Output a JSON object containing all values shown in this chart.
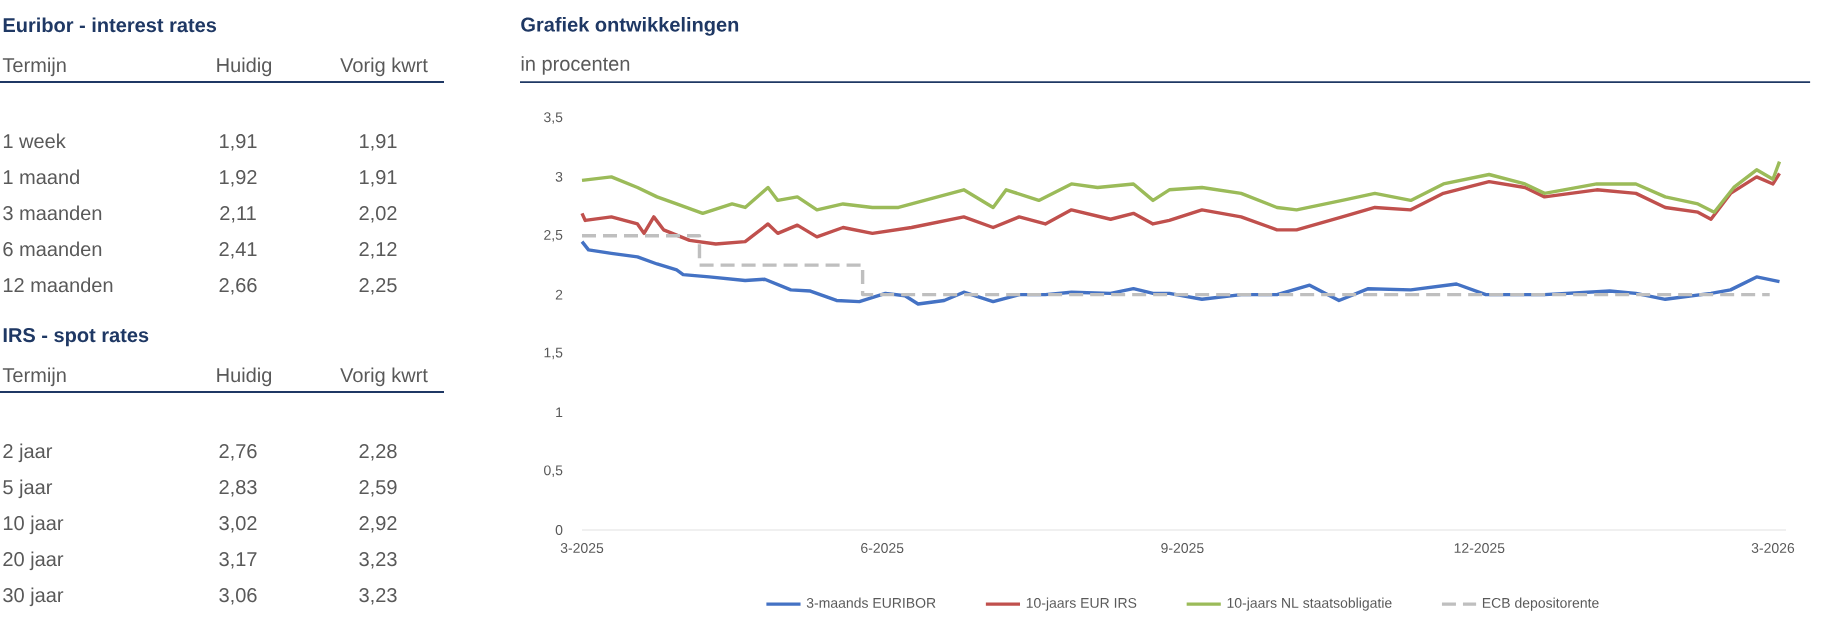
{
  "chart_data": [
    {
      "type": "other",
      "title": "Euribor - interest rates",
      "ylabel": "Termijn",
      "categories": [
        "Huidig",
        "Vorig kwrt"
      ],
      "y_categories": [
        "1 week",
        "1 maand",
        "3 maanden",
        "6 maanden",
        "12 maanden"
      ],
      "cell_labels": [
        [
          "1,91",
          "1,91"
        ],
        [
          "1,92",
          "1,91"
        ],
        [
          "2,11",
          "2,02"
        ],
        [
          "2,41",
          "2,12"
        ],
        [
          "2,66",
          "2,25"
        ]
      ]
    },
    {
      "type": "other",
      "title": "IRS - spot rates",
      "ylabel": "Termijn",
      "categories": [
        "Huidig",
        "Vorig kwrt"
      ],
      "y_categories": [
        "2 jaar",
        "5 jaar",
        "10 jaar",
        "20 jaar",
        "30 jaar"
      ],
      "cell_labels": [
        [
          "2,76",
          "2,28"
        ],
        [
          "2,83",
          "2,59"
        ],
        [
          "3,02",
          "2,92"
        ],
        [
          "3,17",
          "3,23"
        ],
        [
          "3,06",
          "3,23"
        ]
      ]
    },
    {
      "type": "line",
      "title": "Grafiek ontwikkelingen",
      "subtitle": "in procenten",
      "legend": "bottom",
      "xlim": [
        "2025-03-01",
        "2026-03-05"
      ],
      "xticks": [
        {
          "value": "2025-03-01",
          "label": "3-2025"
        },
        {
          "value": "2025-06-01",
          "label": "6-2025"
        },
        {
          "value": "2025-09-01",
          "label": "9-2025"
        },
        {
          "value": "2025-12-01",
          "label": "12-2025"
        },
        {
          "value": "2026-03-01",
          "label": "3-2026"
        }
      ],
      "ylim": [
        0,
        3.5
      ],
      "yticks": [
        0,
        {
          "value": 0.5,
          "label": "0,5"
        },
        1,
        {
          "value": 1.5,
          "label": "1,5"
        },
        2,
        {
          "value": 2.5,
          "label": "2,5"
        },
        3,
        {
          "value": 3.5,
          "label": "3,5"
        }
      ],
      "series": [
        {
          "name": "3-maands EURIBOR",
          "color": "#4472c4",
          "line_style": "solid",
          "x": [
            "2025-03-01",
            "2025-03-03",
            "2025-03-10",
            "2025-03-18",
            "2025-03-24",
            "2025-03-30",
            "2025-04-01",
            "2025-04-09",
            "2025-04-20",
            "2025-04-26",
            "2025-05-04",
            "2025-05-10",
            "2025-05-18",
            "2025-05-25",
            "2025-06-02",
            "2025-06-08",
            "2025-06-12",
            "2025-06-20",
            "2025-06-26",
            "2025-07-05",
            "2025-07-13",
            "2025-07-21",
            "2025-07-29",
            "2025-08-10",
            "2025-08-17",
            "2025-08-23",
            "2025-08-28",
            "2025-09-07",
            "2025-09-19",
            "2025-09-30",
            "2025-10-10",
            "2025-10-19",
            "2025-10-28",
            "2025-11-10",
            "2025-11-24",
            "2025-12-03",
            "2025-12-21",
            "2026-01-10",
            "2026-01-18",
            "2026-01-27",
            "2026-02-10",
            "2026-02-16",
            "2026-02-24",
            "2026-03-03"
          ],
          "values": [
            2.45,
            2.38,
            2.35,
            2.32,
            2.26,
            2.21,
            2.17,
            2.15,
            2.12,
            2.13,
            2.04,
            2.03,
            1.95,
            1.94,
            2.01,
            1.99,
            1.92,
            1.95,
            2.02,
            1.94,
            2.0,
            2.0,
            2.02,
            2.01,
            2.05,
            2.01,
            2.01,
            1.96,
            2.0,
            2.0,
            2.08,
            1.95,
            2.05,
            2.04,
            2.09,
            2.0,
            2.0,
            2.03,
            2.01,
            1.96,
            2.01,
            2.04,
            2.15,
            2.11
          ]
        },
        {
          "name": "10-jaars EUR IRS",
          "color": "#c0504d",
          "line_style": "solid",
          "x": [
            "2025-03-01",
            "2025-03-02",
            "2025-03-10",
            "2025-03-18",
            "2025-03-20",
            "2025-03-23",
            "2025-03-26",
            "2025-04-03",
            "2025-04-11",
            "2025-04-20",
            "2025-04-27",
            "2025-04-30",
            "2025-05-06",
            "2025-05-12",
            "2025-05-20",
            "2025-05-29",
            "2025-06-10",
            "2025-06-26",
            "2025-07-05",
            "2025-07-13",
            "2025-07-21",
            "2025-07-29",
            "2025-08-10",
            "2025-08-17",
            "2025-08-23",
            "2025-08-28",
            "2025-09-07",
            "2025-09-19",
            "2025-09-30",
            "2025-10-06",
            "2025-10-20",
            "2025-10-30",
            "2025-11-10",
            "2025-11-20",
            "2025-12-04",
            "2025-12-15",
            "2025-12-21",
            "2026-01-06",
            "2026-01-18",
            "2026-01-27",
            "2026-02-06",
            "2026-02-10",
            "2026-02-16",
            "2026-02-24",
            "2026-03-01",
            "2026-03-03"
          ],
          "values": [
            2.69,
            2.63,
            2.66,
            2.6,
            2.52,
            2.66,
            2.55,
            2.46,
            2.43,
            2.45,
            2.6,
            2.52,
            2.59,
            2.49,
            2.57,
            2.52,
            2.57,
            2.66,
            2.57,
            2.66,
            2.6,
            2.72,
            2.64,
            2.69,
            2.6,
            2.63,
            2.72,
            2.66,
            2.55,
            2.55,
            2.66,
            2.74,
            2.72,
            2.86,
            2.96,
            2.91,
            2.83,
            2.89,
            2.86,
            2.74,
            2.7,
            2.64,
            2.86,
            3.0,
            2.94,
            3.03
          ]
        },
        {
          "name": "10-jaars NL staatsobligatie",
          "color": "#9bbb59",
          "line_style": "solid",
          "x": [
            "2025-03-01",
            "2025-03-10",
            "2025-03-18",
            "2025-03-24",
            "2025-03-30",
            "2025-04-07",
            "2025-04-16",
            "2025-04-20",
            "2025-04-27",
            "2025-04-30",
            "2025-05-06",
            "2025-05-12",
            "2025-05-20",
            "2025-05-29",
            "2025-06-06",
            "2025-06-14",
            "2025-06-26",
            "2025-07-05",
            "2025-07-09",
            "2025-07-19",
            "2025-07-29",
            "2025-08-06",
            "2025-08-17",
            "2025-08-23",
            "2025-08-28",
            "2025-09-07",
            "2025-09-19",
            "2025-09-30",
            "2025-10-06",
            "2025-10-20",
            "2025-10-30",
            "2025-11-10",
            "2025-11-20",
            "2025-12-04",
            "2025-12-15",
            "2025-12-21",
            "2026-01-06",
            "2026-01-18",
            "2026-01-27",
            "2026-02-06",
            "2026-02-11",
            "2026-02-17",
            "2026-02-24",
            "2026-03-01",
            "2026-03-03"
          ],
          "values": [
            2.97,
            3.0,
            2.91,
            2.83,
            2.77,
            2.69,
            2.77,
            2.74,
            2.91,
            2.8,
            2.83,
            2.72,
            2.77,
            2.74,
            2.74,
            2.8,
            2.89,
            2.74,
            2.89,
            2.8,
            2.94,
            2.91,
            2.94,
            2.8,
            2.89,
            2.91,
            2.86,
            2.74,
            2.72,
            2.8,
            2.86,
            2.8,
            2.94,
            3.02,
            2.94,
            2.86,
            2.94,
            2.94,
            2.83,
            2.77,
            2.7,
            2.91,
            3.06,
            2.98,
            3.13
          ]
        },
        {
          "name": "ECB depositorente",
          "color": "#bfbfbf",
          "type": "step",
          "line_style": "dashed",
          "x": [
            "2025-03-01",
            "2025-04-06",
            "2025-05-26",
            "2026-02-28"
          ],
          "values": [
            2.5,
            2.25,
            2.0,
            2.0
          ]
        }
      ]
    }
  ]
}
